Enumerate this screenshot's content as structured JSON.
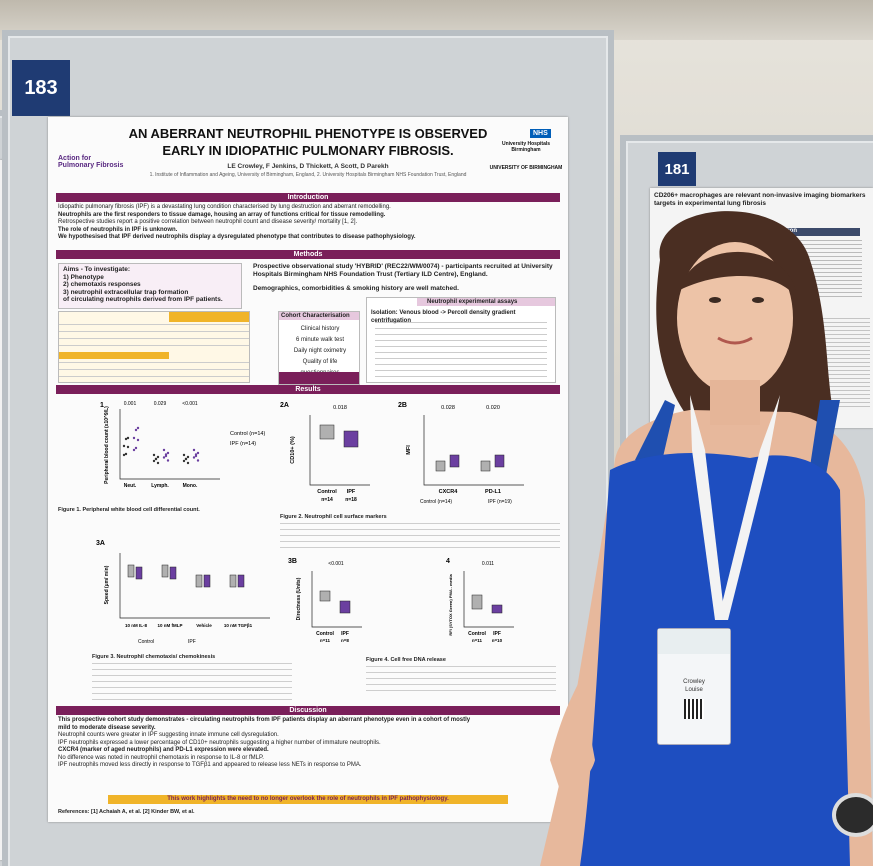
{
  "board": {
    "left_number": "183",
    "right_number": "181"
  },
  "poster": {
    "title_line1": "AN ABERRANT NEUTROPHIL PHENOTYPE IS OBSERVED",
    "title_line2": "EARLY IN IDIOPATHIC PULMONARY FIBROSIS.",
    "authors": "LE Crowley, F Jenkins, D Thickett, A Scott, D Parekh",
    "affiliation": "1. Institute of Inflammation and Ageing, University of Birmingham, England, 2. University Hospitals Birmingham NHS Foundation Trust, England",
    "logo_left": "Action for Pulmonary Fibrosis",
    "logo_nhs": "NHS",
    "logo_nhs_sub": "University Hospitals Birmingham",
    "logo_uob": "UNIVERSITY OF BIRMINGHAM",
    "sections": {
      "introduction": "Introduction",
      "methods": "Methods",
      "results": "Results",
      "discussion": "Discussion"
    },
    "intro_lines": [
      "Idiopathic pulmonary fibrosis (IPF) is a devastating lung condition characterised by lung destruction and aberrant remodelling.",
      "Neutrophils are the first responders to tissue damage, housing an array of functions critical for tissue remodelling.",
      "Retrospective studies report a positive correlation between neutrophil count and disease severity/ mortality [1, 2].",
      "The role of neutrophils in IPF is unknown.",
      "We hypothesised that IPF derived neutrophils display a dysregulated phenotype that contributes to disease pathophysiology."
    ],
    "aims": [
      "Aims - To investigate:",
      "1) Phenotype",
      "2) chemotaxis responses",
      "3) neutrophil extracellular trap formation",
      "of circulating neutrophils derived from IPF patients."
    ],
    "methods_text": "Prospective observational study 'HYBRID' (REC22/WM/0074) - participants recruited at University Hospitals Birmingham NHS Foundation Trust (Tertiary ILD Centre), England.",
    "methods_text2": "Demographics, comorbidities & smoking history are well matched.",
    "cohort_title": "Cohort Characterisation",
    "cohort_items": [
      "Clinical history",
      "6 minute walk test",
      "Daily night oximetry",
      "Quality of life questionnaires"
    ],
    "neutrophil_title": "Neutrophil experimental assays",
    "isolation": "Isolation: Venous blood -> Percoll density gradient centrifugation",
    "fig1_caption": "Figure 1. Peripheral white blood cell differential count.",
    "fig2_caption": "Figure 2. Neutrophil cell surface markers",
    "fig3_caption": "Figure 3. Neutrophil chemotaxis/ chemokinesis",
    "fig4_caption": "Figure 4. Cell free DNA release",
    "discussion_lines": [
      "This prospective cohort study demonstrates - circulating neutrophils from IPF patients display an aberrant phenotype even in a cohort of mostly",
      "mild to moderate disease severity.",
      "Neutrophil counts were greater in IPF suggesting innate immune cell dysregulation.",
      "IPF neutrophils expressed a lower percentage of CD10+ neutrophils suggesting a higher number of immature neutrophils.",
      "CXCR4 (marker of aged neutrophils) and PD-L1 expression were elevated.",
      "No difference was noted in neutrophil chemotaxis in response to IL-8 or fMLP.",
      "IPF neutrophils moved less directly in response to TGFβ1 and appeared to release less NETs in response to PMA."
    ],
    "conclusion": "This work highlights the need to no longer overlook the role of neutrophils in IPF pathophysiology.",
    "fig1": {
      "label": "1",
      "ylabel": "Peripheral blood count (x10^9/L)",
      "cats": [
        "Neut.",
        "Lymph.",
        "Mono."
      ],
      "p": [
        "0.001",
        "0.029",
        "<0.001"
      ],
      "legend": [
        "Control (n=14)",
        "IPF (n=14)"
      ]
    },
    "fig2a": {
      "label": "2A",
      "ylabel": "CD10+ (%)",
      "p": "0.018",
      "cats": [
        "Control",
        "IPF"
      ],
      "n": [
        "n=14",
        "n=18"
      ]
    },
    "fig2b": {
      "label": "2B",
      "ylabel": "MFI",
      "p": [
        "0.028",
        "0.020"
      ],
      "cats": [
        "CXCR4",
        "PD-L1"
      ],
      "legend": [
        "Control (n=14)",
        "IPF (n=19)"
      ]
    },
    "fig3a": {
      "label": "3A",
      "ylabel": "Speed (µm/ min)",
      "cats": [
        "10 nM IL-8",
        "10 nM fMLP",
        "Vehicle",
        "10 nM TGFβ1"
      ],
      "legend": [
        "Control",
        "IPF"
      ]
    },
    "fig3b": {
      "label": "3B",
      "ylabel": "Directness (Units)",
      "p": "<0.001",
      "cats": [
        "Control",
        "IPF"
      ],
      "n": [
        "n=11",
        "n=8"
      ]
    },
    "fig4": {
      "label": "4",
      "ylabel": "RFI (SYTOX Green) PMA - media",
      "p": "0.011",
      "cats": [
        "Control",
        "IPF"
      ],
      "n": [
        "n=11",
        "n=10"
      ]
    },
    "references": "References: [1] Achaiah A, et al. [2] Kinder BW, et al."
  },
  "right_poster": {
    "title": "CD206+ macrophages are relevant non-invasive imaging biomarkers targets in experimental lung fibrosis",
    "section": "Introduction"
  },
  "badge": {
    "name_line1": "Crowley",
    "name_line2": "Louise"
  }
}
